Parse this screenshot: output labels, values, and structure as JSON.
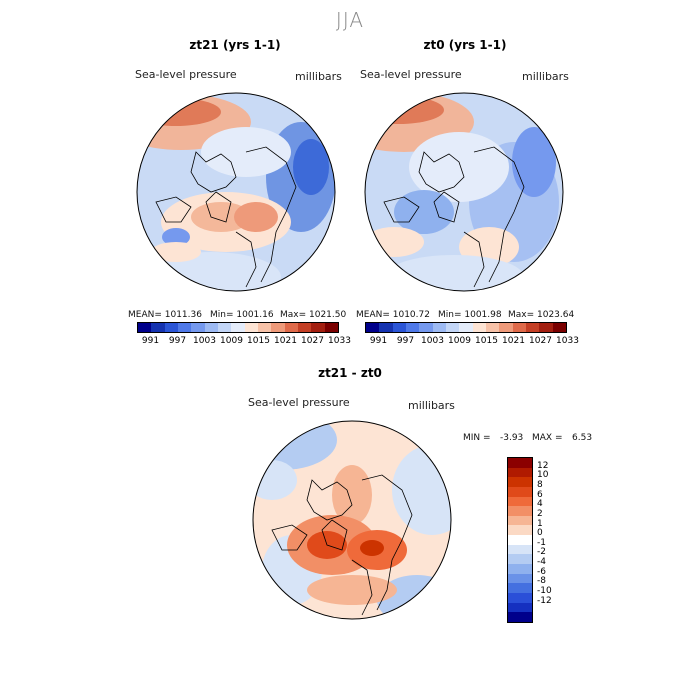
{
  "title": "JJA",
  "panels": [
    {
      "title": "zt21 (yrs 1-1)",
      "field": "Sea-level pressure",
      "units": "millibars",
      "mean": "MEAN= 1011.36",
      "min": "Min= 1001.16",
      "max": "Max= 1021.50"
    },
    {
      "title": "zt0 (yrs 1-1)",
      "field": "Sea-level pressure",
      "units": "millibars",
      "mean": "MEAN= 1010.72",
      "min": "Min= 1001.98",
      "max": "Max= 1023.64"
    }
  ],
  "abs_colorbar": {
    "colors": [
      "#00008b",
      "#1533b0",
      "#2b55d6",
      "#4f79e8",
      "#7599ee",
      "#9dbaf3",
      "#c3d6f7",
      "#e4ecfa",
      "#fde4d4",
      "#f7c2a8",
      "#ee9a7a",
      "#df6a4a",
      "#c43f25",
      "#a31f10",
      "#7a0000"
    ],
    "ticks": [
      "991",
      "997",
      "1003",
      "1009",
      "1015",
      "1021",
      "1027",
      "1033"
    ]
  },
  "diff": {
    "title": "zt21 - zt0",
    "field": "Sea-level pressure",
    "units": "millibars",
    "min_label": "MIN =",
    "min_value": "-3.93",
    "max_label": "MAX =",
    "max_value": "6.53"
  },
  "diff_colorbar": {
    "colors": [
      "#8b0000",
      "#b01a00",
      "#cc3300",
      "#e04a1a",
      "#ef6a3a",
      "#f28f66",
      "#f6b594",
      "#fbd9c4",
      "#ffffff",
      "#d7e4f7",
      "#b4ccf2",
      "#8fb1ee",
      "#6a92e8",
      "#4470e0",
      "#2a4fd8",
      "#1530c0",
      "#00008b"
    ],
    "ticks": [
      "12",
      "10",
      "8",
      "6",
      "4",
      "2",
      "1",
      "0",
      "-1",
      "-2",
      "-4",
      "-6",
      "-8",
      "-10",
      "-12"
    ]
  }
}
